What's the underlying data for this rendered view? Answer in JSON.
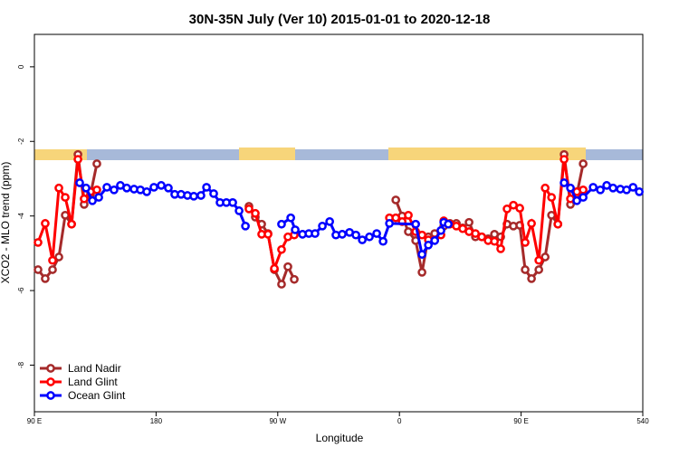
{
  "chart_data": {
    "type": "line",
    "title": "30N-35N July (Ver 10)   2015-01-01 to 2020-12-18",
    "x_label": "Longitude",
    "y_label": "XCO2 - MLO trend (ppm)",
    "xlim": [
      90,
      540
    ],
    "ylim": [
      -9.25,
      0.87
    ],
    "xticks": [
      {
        "value": 90,
        "label": "90 E"
      },
      180,
      {
        "value": 270,
        "label": "90 W"
      },
      {
        "value": 360,
        "label": "0"
      },
      {
        "value": 450,
        "label": "90 E"
      },
      540
    ],
    "yticks": [
      0,
      -2,
      -4,
      -6,
      -8
    ],
    "legend": "bottom-left",
    "series": [
      {
        "name": "Land Nadir",
        "color": "#a52a2a",
        "x": [
          92.7,
          98.0,
          103.4,
          108.1,
          112.8,
          117.5,
          122.2,
          126.8,
          131.5,
          136.2,
          null,
          248.7,
          253.4,
          258.1,
          262.8,
          267.5,
          272.8,
          277.5,
          282.2,
          null,
          357.3,
          362.0,
          366.6,
          372.0,
          376.7,
          381.4,
          386.1,
          392.8,
          397.4,
          402.1,
          406.8,
          411.5,
          416.2,
          420.9,
          425.6,
          430.3,
          434.9,
          439.6,
          444.3,
          449.0,
          453.0,
          457.7,
          463.1,
          467.8,
          472.5,
          477.2,
          481.8,
          486.5,
          491.2,
          495.9
        ],
        "values": [
          -5.44,
          -5.68,
          -5.44,
          -5.1,
          -3.98,
          -4.22,
          -2.35,
          -3.69,
          -3.42,
          -2.6,
          null,
          -3.74,
          -4.03,
          -4.22,
          -4.47,
          -5.44,
          -5.83,
          -5.36,
          -5.7,
          null,
          -3.57,
          -4.0,
          -4.42,
          -4.66,
          -5.51,
          -4.56,
          -4.47,
          -4.27,
          -4.2,
          -4.2,
          -4.32,
          -4.17,
          -4.56,
          -4.56,
          -4.61,
          -4.49,
          -4.56,
          -4.22,
          -4.27,
          -4.25,
          -5.44,
          -5.68,
          -5.44,
          -5.1,
          -3.98,
          -4.22,
          -2.35,
          -3.69,
          -3.42,
          -2.6
        ]
      },
      {
        "name": "Land Glint",
        "color": "#ff0000",
        "x": [
          92.7,
          98.0,
          103.4,
          108.1,
          112.8,
          117.5,
          122.2,
          126.8,
          131.5,
          136.2,
          null,
          248.7,
          253.4,
          258.1,
          262.8,
          267.5,
          272.8,
          277.5,
          282.2,
          null,
          352.6,
          357.3,
          362.0,
          366.6,
          372.0,
          376.7,
          381.4,
          386.1,
          390.7,
          392.8,
          397.4,
          402.1,
          406.8,
          411.5,
          416.2,
          420.9,
          425.6,
          430.3,
          434.9,
          439.6,
          444.3,
          449.0,
          453.0,
          457.7,
          463.1,
          467.8,
          472.5,
          477.2,
          481.8,
          486.5,
          491.2,
          495.9
        ],
        "values": [
          -4.71,
          -4.2,
          -5.19,
          -3.25,
          -3.5,
          -4.22,
          -2.48,
          -3.54,
          -3.35,
          -3.3,
          null,
          -3.81,
          -3.93,
          -4.49,
          -4.49,
          -5.41,
          -4.9,
          -4.56,
          -4.51,
          null,
          -4.05,
          -4.05,
          -4.15,
          -3.98,
          -4.42,
          -4.51,
          -4.64,
          -4.64,
          -4.51,
          -4.13,
          -4.22,
          -4.27,
          -4.34,
          -4.42,
          -4.47,
          -4.56,
          -4.66,
          -4.68,
          -4.88,
          -3.81,
          -3.71,
          -3.79,
          -4.71,
          -4.2,
          -5.19,
          -3.25,
          -3.5,
          -4.22,
          -2.48,
          -3.54,
          -3.35,
          -3.3
        ]
      },
      {
        "name": "Ocean Glint",
        "color": "#0000ff",
        "x": [
          123.5,
          128.2,
          132.9,
          137.6,
          143.6,
          148.9,
          153.6,
          158.3,
          163.7,
          168.4,
          173.1,
          178.4,
          183.8,
          189.1,
          193.8,
          198.5,
          203.2,
          207.9,
          213.2,
          217.3,
          222.6,
          227.3,
          232.0,
          236.7,
          241.4,
          246.1,
          null,
          272.8,
          279.6,
          282.9,
          288.3,
          293.0,
          297.6,
          303.0,
          308.4,
          313.0,
          317.7,
          323.1,
          327.8,
          332.5,
          337.8,
          343.2,
          347.9,
          352.6,
          372.0,
          376.7,
          381.4,
          386.1,
          390.7,
          392.8,
          396.1,
          null,
          481.8,
          486.5,
          491.2,
          495.9,
          503.3,
          508.6,
          513.3,
          518.0,
          523.4,
          528.0,
          532.8,
          537.4
        ],
        "values": [
          -3.11,
          -3.25,
          -3.59,
          -3.5,
          -3.23,
          -3.3,
          -3.18,
          -3.25,
          -3.28,
          -3.3,
          -3.35,
          -3.23,
          -3.18,
          -3.25,
          -3.42,
          -3.42,
          -3.45,
          -3.47,
          -3.45,
          -3.23,
          -3.4,
          -3.64,
          -3.64,
          -3.64,
          -3.86,
          -4.27,
          null,
          -4.22,
          -4.05,
          -4.37,
          -4.49,
          -4.47,
          -4.47,
          -4.27,
          -4.15,
          -4.51,
          -4.49,
          -4.44,
          -4.51,
          -4.64,
          -4.56,
          -4.47,
          -4.68,
          -4.2,
          -4.22,
          -5.03,
          -4.78,
          -4.66,
          -4.39,
          -4.17,
          -4.22,
          null,
          -3.11,
          -3.25,
          -3.59,
          -3.5,
          -3.23,
          -3.3,
          -3.18,
          -3.25,
          -3.28,
          -3.3,
          -3.23,
          -3.35
        ]
      }
    ]
  }
}
